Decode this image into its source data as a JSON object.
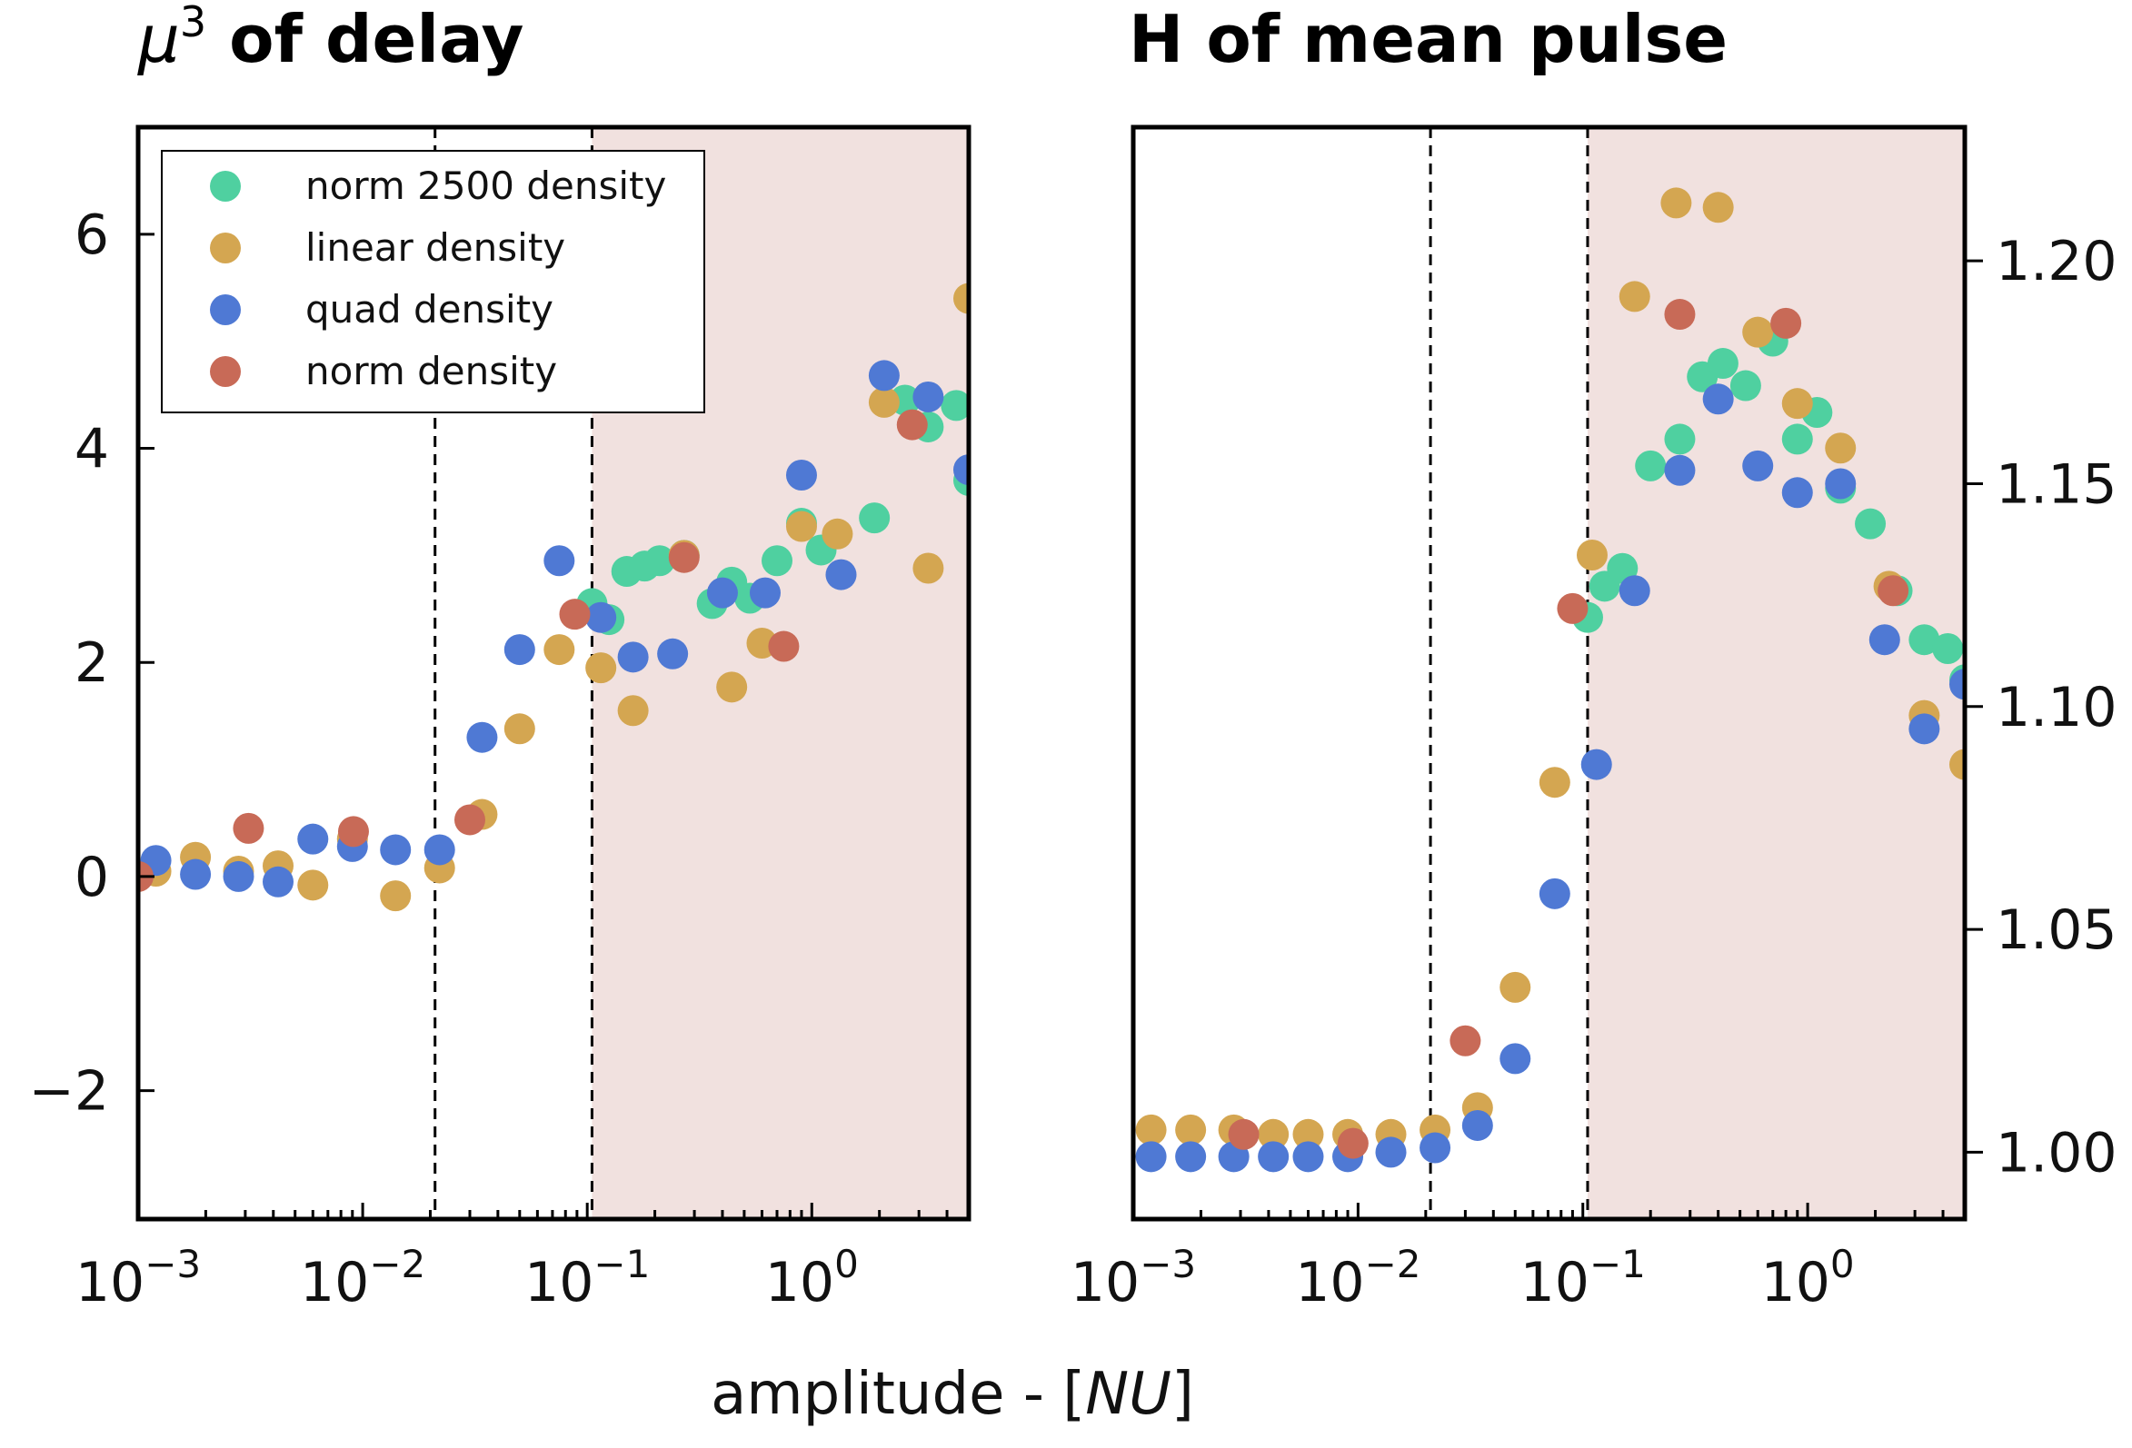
{
  "xlabel": "amplitude - [NU]",
  "colors": {
    "norm_2500": "#4fd0a0",
    "linear": "#d4a651",
    "quad": "#4f79d4",
    "norm": "#c86a57",
    "shade": "#f1e1df",
    "frame": "#000000"
  },
  "chart_data": [
    {
      "type": "scatter",
      "title_sym": "μ",
      "title_sup": "3",
      "title_text": " of delay",
      "xscale": "log",
      "xlim": [
        0.001,
        5
      ],
      "ylim": [
        -3.2,
        7
      ],
      "yticks": [
        -2,
        0,
        2,
        4,
        6
      ],
      "ytick_labels": [
        "−2",
        "0",
        "2",
        "4",
        "6"
      ],
      "xticks": [
        0.001,
        0.01,
        0.1,
        1
      ],
      "xtick_base": "10",
      "xtick_exps": [
        "−3",
        "−2",
        "−1",
        "0"
      ],
      "vlines": [
        0.021,
        0.105
      ],
      "shaded_from": 0.105,
      "yaxis_side": "left",
      "legend": {
        "position": "top-left",
        "entries": [
          "norm 2500 density",
          "linear density",
          "quad density",
          "norm density"
        ]
      },
      "series": [
        {
          "name": "norm 2500 density",
          "color_key": "norm_2500",
          "x": [
            0.105,
            0.125,
            0.15,
            0.18,
            0.21,
            0.27,
            0.36,
            0.44,
            0.53,
            0.7,
            0.9,
            1.1,
            1.9,
            2.6,
            3.3,
            4.4,
            5.0
          ],
          "y": [
            2.55,
            2.4,
            2.85,
            2.9,
            2.95,
            3.0,
            2.55,
            2.75,
            2.6,
            2.95,
            3.3,
            3.05,
            3.35,
            4.45,
            4.2,
            4.4,
            3.7
          ]
        },
        {
          "name": "linear density",
          "color_key": "linear",
          "x": [
            0.0012,
            0.0018,
            0.0028,
            0.0042,
            0.006,
            0.009,
            0.014,
            0.022,
            0.034,
            0.05,
            0.075,
            0.115,
            0.16,
            0.27,
            0.44,
            0.6,
            0.9,
            1.3,
            2.1,
            3.3,
            5.0
          ],
          "y": [
            0.05,
            0.18,
            0.05,
            0.1,
            -0.08,
            0.35,
            -0.18,
            0.08,
            0.58,
            1.38,
            2.12,
            1.95,
            1.55,
            3.0,
            1.77,
            2.18,
            3.27,
            3.2,
            4.43,
            2.88,
            5.4
          ]
        },
        {
          "name": "quad density",
          "color_key": "quad",
          "x": [
            0.0012,
            0.0018,
            0.0028,
            0.0042,
            0.006,
            0.009,
            0.014,
            0.022,
            0.034,
            0.05,
            0.075,
            0.115,
            0.16,
            0.24,
            0.4,
            0.62,
            0.9,
            1.35,
            2.1,
            3.3,
            5.0
          ],
          "y": [
            0.15,
            0.02,
            0.0,
            -0.05,
            0.35,
            0.28,
            0.25,
            0.25,
            1.3,
            2.12,
            2.95,
            2.42,
            2.05,
            2.08,
            2.65,
            2.65,
            3.75,
            2.82,
            4.68,
            4.48,
            3.8
          ]
        },
        {
          "name": "norm density",
          "color_key": "norm",
          "x": [
            0.001,
            0.0031,
            0.0091,
            0.03,
            0.088,
            0.27,
            0.75,
            2.8
          ],
          "y": [
            0.0,
            0.45,
            0.42,
            0.53,
            2.45,
            2.98,
            2.15,
            4.22
          ]
        }
      ]
    },
    {
      "type": "scatter",
      "title_text": "H of mean pulse",
      "xscale": "log",
      "xlim": [
        0.001,
        5
      ],
      "ylim": [
        0.985,
        1.23
      ],
      "yticks": [
        1.0,
        1.05,
        1.1,
        1.15,
        1.2
      ],
      "ytick_labels": [
        "1.00",
        "1.05",
        "1.10",
        "1.15",
        "1.20"
      ],
      "xticks": [
        0.001,
        0.01,
        0.1,
        1
      ],
      "xtick_base": "10",
      "xtick_exps": [
        "−3",
        "−2",
        "−1",
        "0"
      ],
      "vlines": [
        0.021,
        0.105
      ],
      "shaded_from": 0.105,
      "yaxis_side": "right",
      "series": [
        {
          "name": "norm 2500 density",
          "color_key": "norm_2500",
          "x": [
            0.105,
            0.125,
            0.15,
            0.2,
            0.27,
            0.34,
            0.42,
            0.53,
            0.7,
            0.9,
            1.1,
            1.4,
            1.9,
            2.5,
            3.3,
            4.2,
            5.0
          ],
          "y": [
            1.12,
            1.127,
            1.131,
            1.154,
            1.16,
            1.174,
            1.177,
            1.172,
            1.182,
            1.16,
            1.166,
            1.149,
            1.141,
            1.126,
            1.115,
            1.113,
            1.106
          ]
        },
        {
          "name": "linear density",
          "color_key": "linear",
          "x": [
            0.0012,
            0.0018,
            0.0028,
            0.0042,
            0.006,
            0.009,
            0.014,
            0.022,
            0.034,
            0.05,
            0.075,
            0.11,
            0.17,
            0.26,
            0.4,
            0.6,
            0.9,
            1.4,
            2.3,
            3.3,
            5.0
          ],
          "y": [
            1.005,
            1.005,
            1.005,
            1.004,
            1.004,
            1.004,
            1.004,
            1.005,
            1.01,
            1.037,
            1.083,
            1.134,
            1.192,
            1.213,
            1.212,
            1.184,
            1.168,
            1.158,
            1.127,
            1.098,
            1.087
          ]
        },
        {
          "name": "quad density",
          "color_key": "quad",
          "x": [
            0.0012,
            0.0018,
            0.0028,
            0.0042,
            0.006,
            0.009,
            0.014,
            0.022,
            0.034,
            0.05,
            0.075,
            0.115,
            0.17,
            0.27,
            0.4,
            0.6,
            0.9,
            1.4,
            2.2,
            3.3,
            5.0
          ],
          "y": [
            0.999,
            0.999,
            0.999,
            0.999,
            0.999,
            0.999,
            1.0,
            1.001,
            1.006,
            1.021,
            1.058,
            1.087,
            1.126,
            1.153,
            1.169,
            1.154,
            1.148,
            1.15,
            1.115,
            1.095,
            1.105
          ]
        },
        {
          "name": "norm density",
          "color_key": "norm",
          "x": [
            0.0031,
            0.0095,
            0.03,
            0.09,
            0.27,
            0.8,
            2.4
          ],
          "y": [
            1.004,
            1.002,
            1.025,
            1.122,
            1.188,
            1.186,
            1.126
          ]
        }
      ]
    }
  ]
}
